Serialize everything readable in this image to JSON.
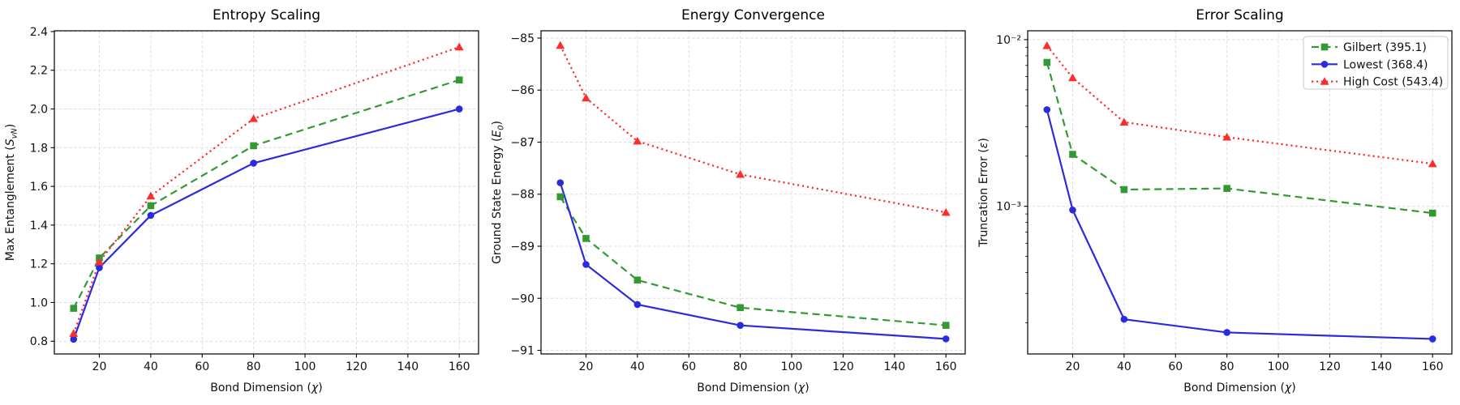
{
  "figure": {
    "background": "#ffffff",
    "grid_color": "#dedede",
    "spine_color": "#000000",
    "text_color": "#111111"
  },
  "chart_data": [
    {
      "type": "line",
      "title": "Entropy Scaling",
      "xlabel": "Bond Dimension (χ)",
      "ylabel": "Max Entanglement (S_vN)",
      "yscale": "linear",
      "grid": true,
      "legend": false,
      "x": [
        10,
        20,
        40,
        80,
        160
      ],
      "xlim": [
        2.5,
        167.5
      ],
      "ylim": [
        0.734,
        2.404
      ],
      "xticks": [
        20,
        40,
        60,
        80,
        100,
        120,
        140,
        160
      ],
      "xtick_labels": [
        "20",
        "40",
        "60",
        "80",
        "100",
        "120",
        "140",
        "160"
      ],
      "yticks": [
        0.8,
        1.0,
        1.2,
        1.4,
        1.6,
        1.8,
        2.0,
        2.2,
        2.4
      ],
      "ytick_labels": [
        "0.8",
        "1.0",
        "1.2",
        "1.4",
        "1.6",
        "1.8",
        "2.0",
        "2.2",
        "2.4"
      ],
      "series": [
        {
          "name": "Gilbert (395.1)",
          "color": "#339933",
          "line": "dashed",
          "marker": "square",
          "values": [
            0.97,
            1.23,
            1.5,
            1.81,
            2.15
          ]
        },
        {
          "name": "Lowest (368.4)",
          "color": "#2b2bde",
          "line": "solid",
          "marker": "circle",
          "values": [
            0.81,
            1.18,
            1.45,
            1.72,
            2.0
          ]
        },
        {
          "name": "High Cost (543.4)",
          "color": "#fd2d2d",
          "line": "dotted",
          "marker": "triangle",
          "values": [
            0.84,
            1.21,
            1.55,
            1.95,
            2.32
          ]
        }
      ]
    },
    {
      "type": "line",
      "title": "Energy Convergence",
      "xlabel": "Bond Dimension (χ)",
      "ylabel": "Ground State Energy (E_0)",
      "yscale": "linear",
      "grid": true,
      "legend": false,
      "x": [
        10,
        20,
        40,
        80,
        160
      ],
      "xlim": [
        2.5,
        167.5
      ],
      "ylim": [
        -91.07,
        -84.86
      ],
      "xticks": [
        20,
        40,
        60,
        80,
        100,
        120,
        140,
        160
      ],
      "xtick_labels": [
        "20",
        "40",
        "60",
        "80",
        "100",
        "120",
        "140",
        "160"
      ],
      "yticks": [
        -91,
        -90,
        -89,
        -88,
        -87,
        -86,
        -85
      ],
      "ytick_labels": [
        "−91",
        "−90",
        "−89",
        "−88",
        "−87",
        "−86",
        "−85"
      ],
      "series": [
        {
          "name": "Gilbert (395.1)",
          "color": "#339933",
          "line": "dashed",
          "marker": "square",
          "values": [
            -88.05,
            -88.85,
            -89.65,
            -90.18,
            -90.52
          ]
        },
        {
          "name": "Lowest (368.4)",
          "color": "#2b2bde",
          "line": "solid",
          "marker": "circle",
          "values": [
            -87.78,
            -89.35,
            -90.12,
            -90.52,
            -90.78
          ]
        },
        {
          "name": "High Cost (543.4)",
          "color": "#fd2d2d",
          "line": "dotted",
          "marker": "triangle",
          "values": [
            -85.14,
            -86.15,
            -86.98,
            -87.62,
            -88.35
          ]
        }
      ]
    },
    {
      "type": "line",
      "title": "Error Scaling",
      "xlabel": "Bond Dimension (χ)",
      "ylabel": "Truncation Error (ε)",
      "yscale": "log",
      "grid": true,
      "legend": true,
      "x": [
        10,
        20,
        40,
        80,
        160
      ],
      "xlim": [
        2.5,
        167.5
      ],
      "ylim": [
        0.00013,
        0.0113
      ],
      "xticks": [
        20,
        40,
        60,
        80,
        100,
        120,
        140,
        160
      ],
      "xtick_labels": [
        "20",
        "40",
        "60",
        "80",
        "100",
        "120",
        "140",
        "160"
      ],
      "yticks": [
        0.01,
        0.001
      ],
      "ytick_labels": [
        "10⁻²",
        "10⁻³"
      ],
      "series": [
        {
          "name": "Gilbert (395.1)",
          "color": "#339933",
          "line": "dashed",
          "marker": "square",
          "values": [
            0.0073,
            0.00205,
            0.00126,
            0.00128,
            0.00091
          ]
        },
        {
          "name": "Lowest (368.4)",
          "color": "#2b2bde",
          "line": "solid",
          "marker": "circle",
          "values": [
            0.0038,
            0.00095,
            0.00021,
            0.000175,
            0.00016
          ]
        },
        {
          "name": "High Cost (543.4)",
          "color": "#fd2d2d",
          "line": "dotted",
          "marker": "triangle",
          "values": [
            0.0092,
            0.0059,
            0.0032,
            0.0026,
            0.0018
          ]
        }
      ]
    }
  ]
}
